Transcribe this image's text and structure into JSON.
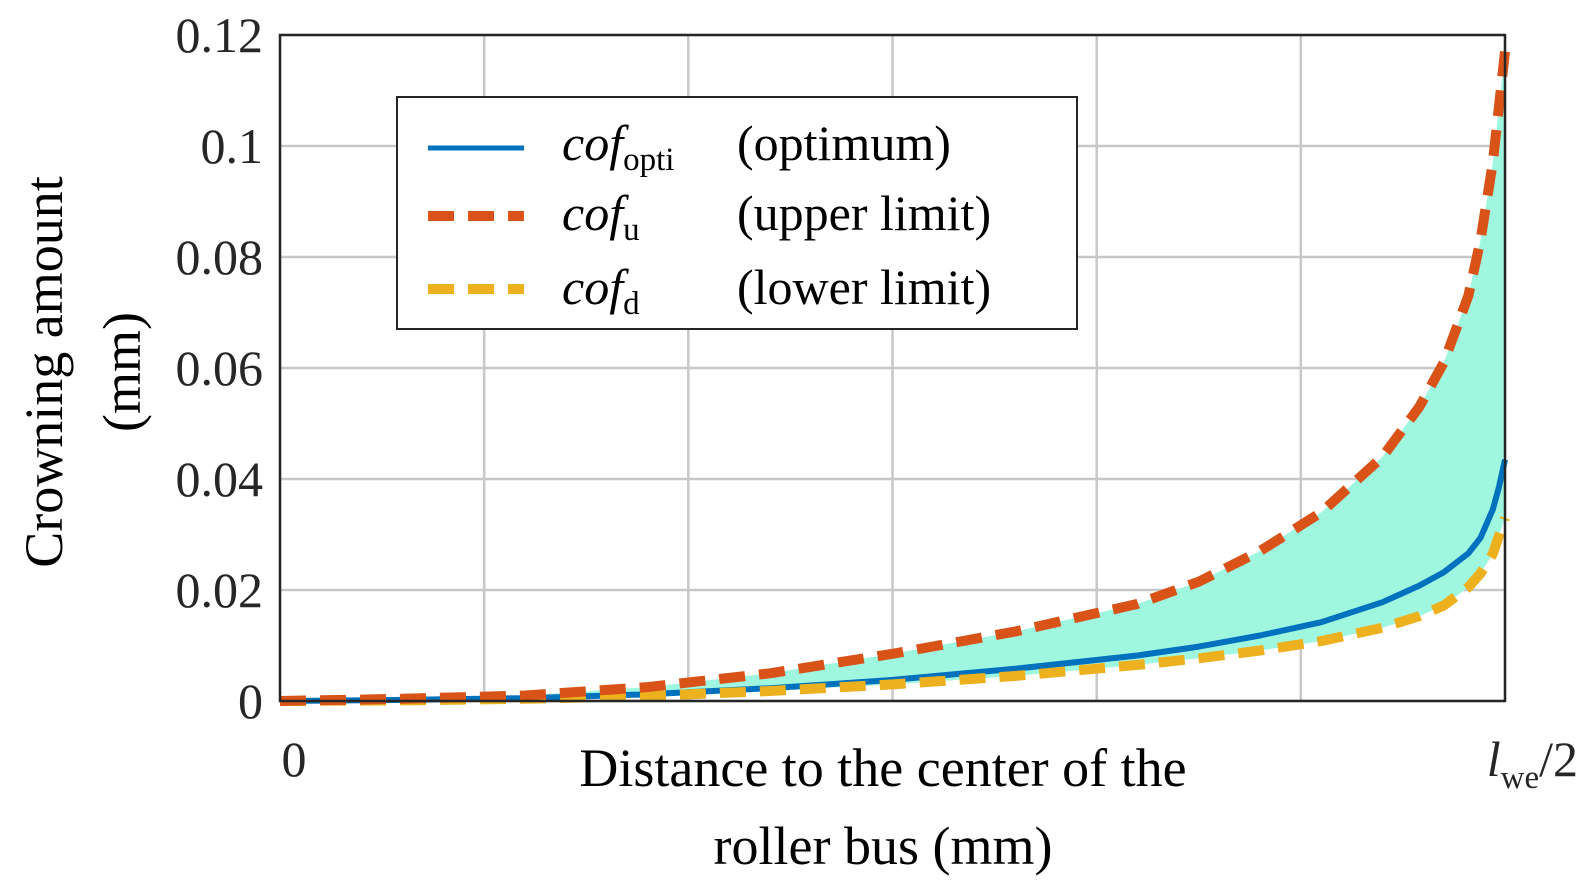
{
  "chart_data": {
    "type": "line",
    "xlabel_line1": "Distance to the center of the",
    "xlabel_line2": "roller bus (mm)",
    "ylabel_line1": "Crowning amount",
    "ylabel_line2": "(mm)",
    "x_tick_start": "0",
    "x_tick_end_main": "l",
    "x_tick_end_sub": "we",
    "x_tick_end_tail": "/2",
    "xlim": [
      0,
      1
    ],
    "ylim": [
      0,
      0.12
    ],
    "y_ticks": [
      "0",
      "0.02",
      "0.04",
      "0.06",
      "0.08",
      "0.1",
      "0.12"
    ],
    "y_tick_values": [
      0,
      0.02,
      0.04,
      0.06,
      0.08,
      0.1,
      0.12
    ],
    "x_grid_values": [
      0,
      0.1667,
      0.3333,
      0.5,
      0.6667,
      0.8333,
      1
    ],
    "grid": true,
    "band": {
      "color": "#a0f7e0",
      "between": [
        "upper",
        "lower"
      ]
    },
    "legend": {
      "placement": "top-left",
      "entries": [
        {
          "key": "opti",
          "main": "cof",
          "sub": "opti",
          "desc": "(optimum)"
        },
        {
          "key": "upper",
          "main": "cof",
          "sub": "u",
          "desc": "(upper limit)"
        },
        {
          "key": "lower",
          "main": "cof",
          "sub": "d",
          "desc": "(lower limit)"
        }
      ]
    },
    "series": [
      {
        "key": "upper",
        "color": "#d95319",
        "style": "dashed",
        "x": [
          0,
          0.1,
          0.2,
          0.3,
          0.4,
          0.5,
          0.6,
          0.7,
          0.75,
          0.8,
          0.85,
          0.9,
          0.93,
          0.95,
          0.97,
          0.98,
          0.99,
          1.0
        ],
        "y": [
          0,
          0.0004,
          0.001,
          0.0025,
          0.005,
          0.0085,
          0.0125,
          0.0175,
          0.0215,
          0.027,
          0.034,
          0.044,
          0.053,
          0.061,
          0.073,
          0.083,
          0.097,
          0.117
        ]
      },
      {
        "key": "opti",
        "color": "#0072bd",
        "style": "solid",
        "x": [
          0,
          0.1,
          0.2,
          0.3,
          0.4,
          0.5,
          0.6,
          0.7,
          0.75,
          0.8,
          0.85,
          0.9,
          0.93,
          0.95,
          0.97,
          0.98,
          0.99,
          0.995,
          1.0
        ],
        "y": [
          0,
          0.0002,
          0.0005,
          0.0012,
          0.0023,
          0.0038,
          0.0058,
          0.0082,
          0.0098,
          0.0118,
          0.0142,
          0.0178,
          0.0208,
          0.0232,
          0.0266,
          0.0294,
          0.0345,
          0.0385,
          0.0435
        ]
      },
      {
        "key": "lower",
        "color": "#edb120",
        "style": "dashed",
        "x": [
          0,
          0.1,
          0.2,
          0.3,
          0.4,
          0.5,
          0.6,
          0.7,
          0.75,
          0.8,
          0.85,
          0.9,
          0.93,
          0.95,
          0.97,
          0.98,
          0.99,
          1.0
        ],
        "y": [
          0,
          0.0001,
          0.0004,
          0.0009,
          0.0018,
          0.003,
          0.0045,
          0.0065,
          0.0077,
          0.0091,
          0.0108,
          0.0132,
          0.0153,
          0.0172,
          0.0205,
          0.023,
          0.0265,
          0.033
        ]
      }
    ]
  }
}
